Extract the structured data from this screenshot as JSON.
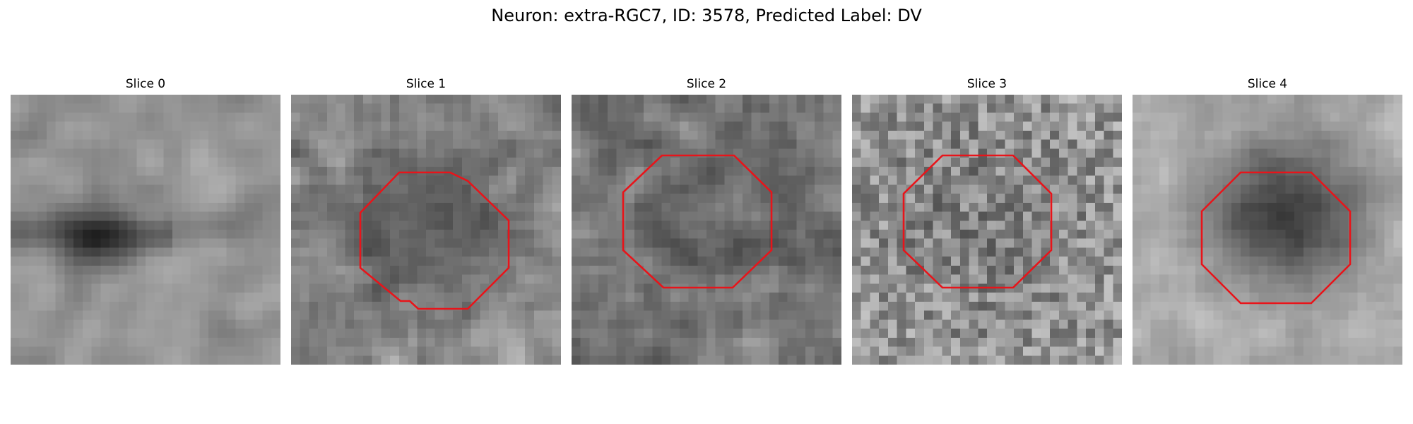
{
  "figure": {
    "title": "Neuron: extra-RGC7, ID: 3578, Predicted Label: DV",
    "outline_color": "#e8141a",
    "colormap": "grayscale"
  },
  "panels": [
    {
      "title": "Slice 0",
      "has_outline": false
    },
    {
      "title": "Slice 1",
      "has_outline": true
    },
    {
      "title": "Slice 2",
      "has_outline": true
    },
    {
      "title": "Slice 3",
      "has_outline": true
    },
    {
      "title": "Slice 4",
      "has_outline": true
    }
  ]
}
